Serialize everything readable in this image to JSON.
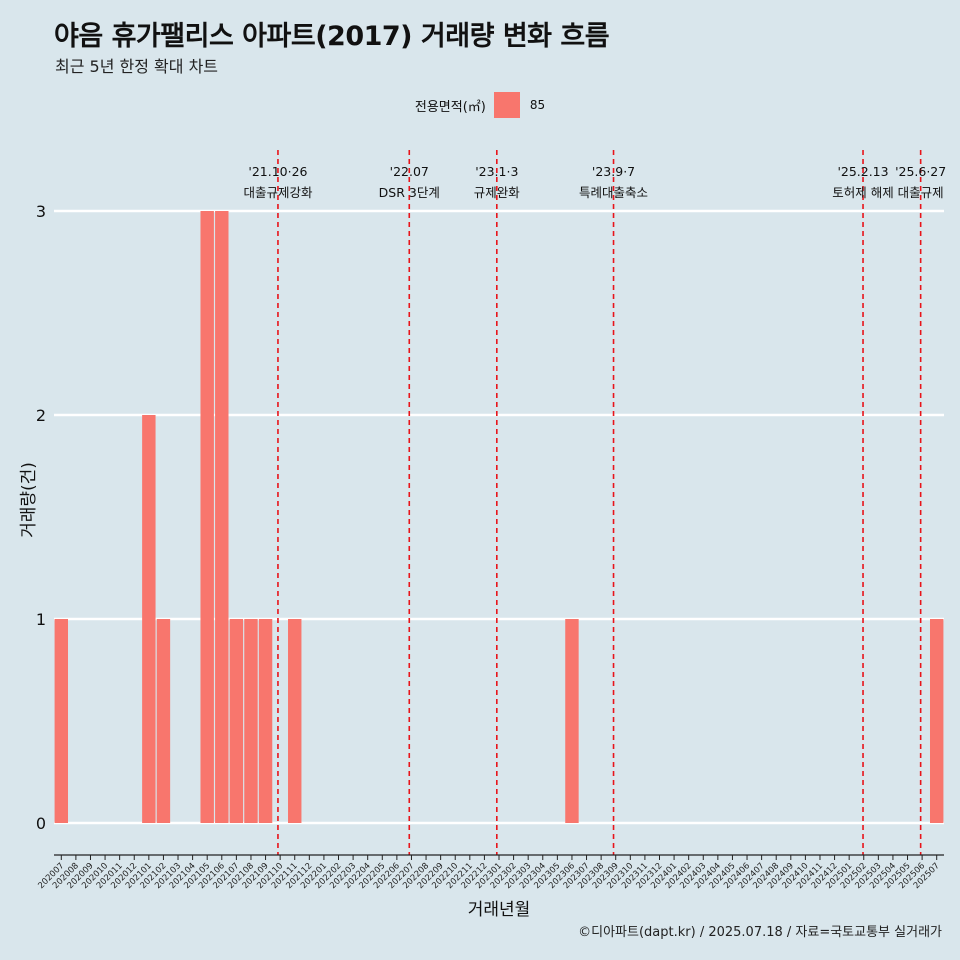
{
  "header": {
    "title": "야음 휴가팰리스 아파트(2017) 거래량 변화 흐름",
    "subtitle": "최근 5년 한정 확대 차트"
  },
  "legend": {
    "title": "전용면적(㎡)",
    "items": [
      {
        "label": "85",
        "color": "#f8766d"
      }
    ]
  },
  "caption": "©디아파트(dapt.kr) / 2025.07.18 / 자료=국토교통부 실거래가",
  "chart_data": {
    "type": "bar",
    "title": "야음 휴가팰리스 아파트(2017) 거래량 변화 흐름",
    "subtitle": "최근 5년 한정 확대 차트",
    "xlabel": "거래년월",
    "ylabel": "거래량(건)",
    "ylim": [
      0,
      3
    ],
    "yticks": [
      0,
      1,
      2,
      3
    ],
    "grid": "horizontal",
    "legend_position": "top",
    "categories": [
      "202007",
      "202008",
      "202009",
      "202010",
      "202011",
      "202012",
      "202101",
      "202102",
      "202103",
      "202104",
      "202105",
      "202106",
      "202107",
      "202108",
      "202109",
      "202110",
      "202111",
      "202112",
      "202201",
      "202202",
      "202203",
      "202204",
      "202205",
      "202206",
      "202207",
      "202208",
      "202209",
      "202210",
      "202211",
      "202212",
      "202301",
      "202302",
      "202303",
      "202304",
      "202305",
      "202306",
      "202307",
      "202308",
      "202309",
      "202310",
      "202311",
      "202312",
      "202401",
      "202402",
      "202403",
      "202404",
      "202405",
      "202406",
      "202407",
      "202408",
      "202409",
      "202410",
      "202411",
      "202412",
      "202501",
      "202502",
      "202503",
      "202504",
      "202505",
      "202506",
      "202507"
    ],
    "series": [
      {
        "name": "85",
        "color": "#f8766d",
        "values": [
          1,
          0,
          0,
          0,
          0,
          0,
          2,
          1,
          0,
          0,
          3,
          3,
          1,
          1,
          1,
          0,
          1,
          0,
          0,
          0,
          0,
          0,
          0,
          0,
          0,
          0,
          0,
          0,
          0,
          0,
          0,
          0,
          0,
          0,
          0,
          1,
          0,
          0,
          0,
          0,
          0,
          0,
          0,
          0,
          0,
          0,
          0,
          0,
          0,
          0,
          0,
          0,
          0,
          0,
          0,
          0,
          0,
          0,
          0,
          0,
          1
        ]
      }
    ],
    "annotations": [
      {
        "x": 15.35,
        "date": "'21.10·26",
        "label": "대출규제강화",
        "color": "#e8141a"
      },
      {
        "x": 24.35,
        "date": "'22.07",
        "label": "DSR 3단계",
        "color": "#e8141a"
      },
      {
        "x": 30.35,
        "date": "'23.1·3",
        "label": "규제완화",
        "color": "#e8141a"
      },
      {
        "x": 38.35,
        "date": "'23.9·7",
        "label": "특례대출축소",
        "color": "#e8141a"
      },
      {
        "x": 55.45,
        "date": "'25.2.13",
        "label": "토허제 해제",
        "color": "#e8141a"
      },
      {
        "x": 59.4,
        "date": "'25.6·27",
        "label": "대출규제",
        "color": "#e8141a"
      }
    ]
  }
}
